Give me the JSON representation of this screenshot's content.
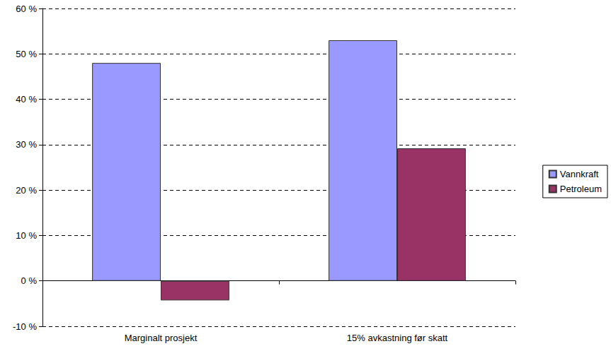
{
  "chart_data": {
    "type": "bar",
    "categories": [
      "Marginalt prosjekt",
      "15% avkastning før skatt"
    ],
    "series": [
      {
        "name": "Vannkraft",
        "color": "#9999ff",
        "values": [
          48,
          53
        ]
      },
      {
        "name": "Petroleum",
        "color": "#993366",
        "values": [
          -4.3,
          29.2
        ]
      }
    ],
    "ylim": [
      -10,
      60
    ],
    "yticks": [
      {
        "value": -10,
        "label": "-10 %"
      },
      {
        "value": 0,
        "label": "0 %"
      },
      {
        "value": 10,
        "label": "10 %"
      },
      {
        "value": 20,
        "label": "20 %"
      },
      {
        "value": 30,
        "label": "30 %"
      },
      {
        "value": 40,
        "label": "40 %"
      },
      {
        "value": 50,
        "label": "50 %"
      },
      {
        "value": 60,
        "label": "60 %"
      }
    ],
    "grid": true,
    "legend": "right"
  }
}
